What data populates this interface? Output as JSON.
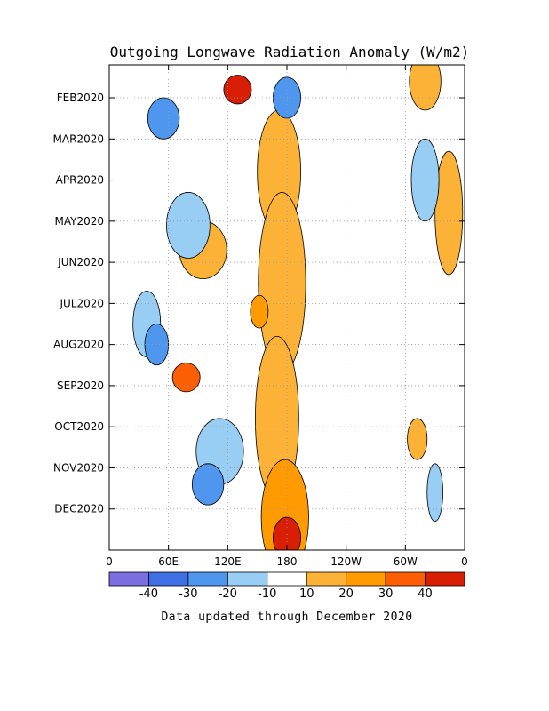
{
  "chart_data": {
    "type": "heatmap",
    "title": "Outgoing Longwave Radiation Anomaly (W/m2)",
    "footer": "Data updated through December 2020",
    "x_tick_labels": [
      "0",
      "60E",
      "120E",
      "180",
      "120W",
      "60W",
      "0"
    ],
    "x_tick_lon": [
      0,
      60,
      120,
      180,
      240,
      300,
      360
    ],
    "xlim": [
      0,
      360
    ],
    "y_tick_labels": [
      "FEB2020",
      "MAR2020",
      "APR2020",
      "MAY2020",
      "JUN2020",
      "JUL2020",
      "AUG2020",
      "SEP2020",
      "OCT2020",
      "NOV2020",
      "DEC2020"
    ],
    "y_tick_month": [
      1,
      2,
      3,
      4,
      5,
      6,
      7,
      8,
      9,
      10,
      11
    ],
    "ylim_month": [
      0.2,
      12.0
    ],
    "grid": "dotted",
    "colorbar": {
      "labels": [
        "-40",
        "-30",
        "-20",
        "-10",
        "10",
        "20",
        "30",
        "40"
      ],
      "levels": [
        -40,
        -30,
        -20,
        -10,
        10,
        20,
        30,
        40
      ],
      "colors": [
        "#7b6ee0",
        "#3f6fe4",
        "#4f97ee",
        "#98cdf4",
        "#ffffff",
        "#fbb236",
        "#ff9b00",
        "#fc5e04",
        "#d91e06"
      ]
    },
    "anomaly_regions": [
      {
        "lon": 172,
        "month": 2.8,
        "rlon": 22,
        "rmon": 1.5,
        "value": 15
      },
      {
        "lon": 175,
        "month": 5.5,
        "rlon": 24,
        "rmon": 2.2,
        "value": 15
      },
      {
        "lon": 170,
        "month": 8.8,
        "rlon": 22,
        "rmon": 2.0,
        "value": 18
      },
      {
        "lon": 178,
        "month": 11.2,
        "rlon": 24,
        "rmon": 1.4,
        "value": 25
      },
      {
        "lon": 180,
        "month": 11.7,
        "rlon": 14,
        "rmon": 0.5,
        "value": 45
      },
      {
        "lon": 152,
        "month": 6.2,
        "rlon": 9,
        "rmon": 0.4,
        "value": 25
      },
      {
        "lon": 130,
        "month": 0.8,
        "rlon": 14,
        "rmon": 0.35,
        "value": 45
      },
      {
        "lon": 78,
        "month": 7.8,
        "rlon": 14,
        "rmon": 0.35,
        "value": 35
      },
      {
        "lon": 320,
        "month": 0.6,
        "rlon": 16,
        "rmon": 0.7,
        "value": 15
      },
      {
        "lon": 344,
        "month": 3.8,
        "rlon": 14,
        "rmon": 1.5,
        "value": 15
      },
      {
        "lon": 312,
        "month": 9.3,
        "rlon": 10,
        "rmon": 0.5,
        "value": 15
      },
      {
        "lon": 95,
        "month": 4.7,
        "rlon": 24,
        "rmon": 0.7,
        "value": 15
      },
      {
        "lon": 38,
        "month": 6.5,
        "rlon": 14,
        "rmon": 0.8,
        "value": -18
      },
      {
        "lon": 55,
        "month": 1.5,
        "rlon": 16,
        "rmon": 0.5,
        "value": -25
      },
      {
        "lon": 80,
        "month": 4.1,
        "rlon": 22,
        "rmon": 0.8,
        "value": -15
      },
      {
        "lon": 48,
        "month": 7.0,
        "rlon": 12,
        "rmon": 0.5,
        "value": -28
      },
      {
        "lon": 180,
        "month": 1.0,
        "rlon": 14,
        "rmon": 0.5,
        "value": -25
      },
      {
        "lon": 112,
        "month": 9.6,
        "rlon": 24,
        "rmon": 0.8,
        "value": -15
      },
      {
        "lon": 100,
        "month": 10.4,
        "rlon": 16,
        "rmon": 0.5,
        "value": -25
      },
      {
        "lon": 320,
        "month": 3.0,
        "rlon": 14,
        "rmon": 1.0,
        "value": -15
      },
      {
        "lon": 330,
        "month": 10.6,
        "rlon": 8,
        "rmon": 0.7,
        "value": -15
      }
    ]
  }
}
